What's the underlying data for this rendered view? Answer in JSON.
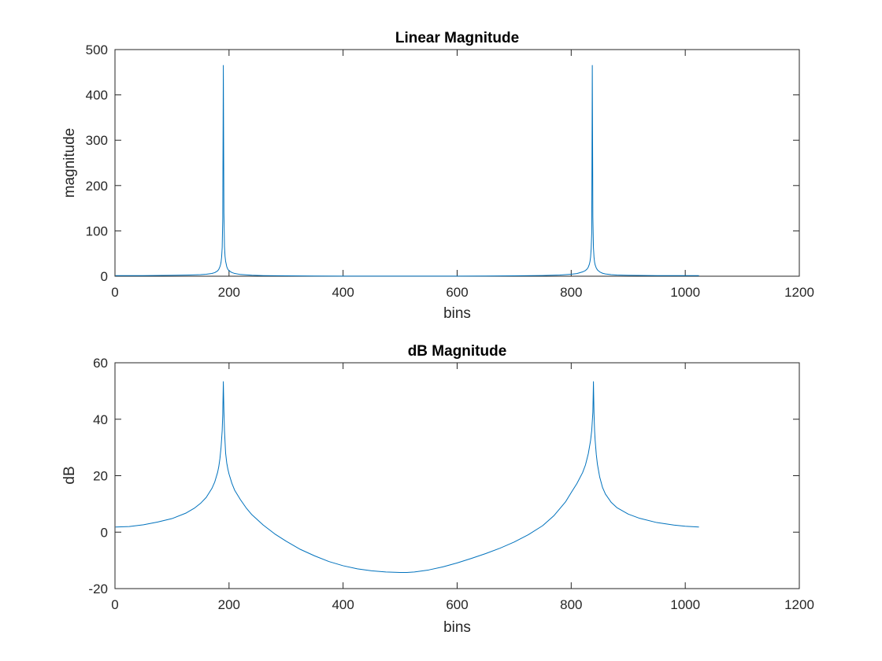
{
  "chart_data": [
    {
      "type": "line",
      "title": "Linear Magnitude",
      "xlabel": "bins",
      "ylabel": "magnitude",
      "xlim": [
        0,
        1200
      ],
      "ylim": [
        0,
        500
      ],
      "xticks": [
        0,
        200,
        400,
        600,
        800,
        1000,
        1200
      ],
      "yticks": [
        0,
        100,
        200,
        300,
        400,
        500
      ],
      "grid": false,
      "color": "#0072BD",
      "series": [
        {
          "x": [
            1,
            50,
            100,
            130,
            150,
            160,
            170,
            175,
            180,
            182,
            184,
            185,
            186,
            187,
            188,
            189,
            190,
            191,
            192,
            193,
            194,
            196,
            198,
            200,
            205,
            210,
            220,
            240,
            260,
            300,
            350,
            400,
            450,
            500,
            512,
            550,
            600,
            650,
            700,
            750,
            780,
            800,
            810,
            820,
            825,
            828,
            830,
            832,
            833,
            834,
            835,
            836,
            837,
            838,
            839,
            840,
            841,
            842,
            844,
            846,
            850,
            855,
            860,
            870,
            880,
            900,
            950,
            1000,
            1024
          ],
          "y": [
            1.2,
            1.3,
            1.9,
            2.6,
            3.5,
            4.3,
            6.1,
            7.9,
            11.8,
            15,
            21,
            25,
            31,
            42,
            63,
            130,
            465,
            140,
            66,
            44,
            33,
            21,
            15,
            12,
            8.1,
            6,
            3.8,
            2.1,
            1.4,
            0.8,
            0.5,
            0.3,
            0.22,
            0.19,
            0.19,
            0.21,
            0.3,
            0.45,
            0.8,
            1.6,
            2.7,
            4.3,
            5.9,
            9.5,
            12.5,
            16,
            20,
            27,
            33,
            42,
            60,
            95,
            465,
            130,
            63,
            42,
            31,
            25,
            18,
            14,
            9.5,
            6.5,
            5,
            3.4,
            2.6,
            1.9,
            1.4,
            1.2,
            1.2
          ]
        }
      ]
    },
    {
      "type": "line",
      "title": "dB Magnitude",
      "xlabel": "bins",
      "ylabel": "dB",
      "xlim": [
        0,
        1200
      ],
      "ylim": [
        -20,
        60
      ],
      "xticks": [
        0,
        200,
        400,
        600,
        800,
        1000,
        1200
      ],
      "yticks": [
        -20,
        0,
        20,
        40,
        60
      ],
      "grid": false,
      "color": "#0072BD",
      "series": [
        {
          "x": [
            1,
            25,
            50,
            75,
            100,
            125,
            140,
            150,
            160,
            170,
            175,
            180,
            182,
            184,
            186,
            188,
            189,
            190,
            191,
            192,
            194,
            196,
            198,
            200,
            205,
            210,
            220,
            230,
            240,
            260,
            280,
            300,
            325,
            350,
            375,
            400,
            425,
            450,
            475,
            500,
            512,
            525,
            550,
            575,
            600,
            625,
            650,
            675,
            700,
            725,
            750,
            770,
            790,
            800,
            810,
            820,
            825,
            830,
            834,
            836,
            838,
            839,
            840,
            841,
            842,
            844,
            846,
            850,
            855,
            860,
            870,
            880,
            900,
            920,
            950,
            980,
            1000,
            1024
          ],
          "y": [
            1.8,
            2.0,
            2.6,
            3.6,
            4.8,
            6.8,
            8.6,
            10.2,
            12.3,
            15.5,
            17.8,
            21.2,
            23.2,
            26,
            30,
            36,
            42,
            53.3,
            43,
            36,
            28,
            24.5,
            22.3,
            20.6,
            17.3,
            14.8,
            11.5,
            8.6,
            6.2,
            2.5,
            -0.6,
            -3.2,
            -6.1,
            -8.4,
            -10.4,
            -11.9,
            -13,
            -13.7,
            -14.1,
            -14.3,
            -14.3,
            -14.1,
            -13.4,
            -12.3,
            -10.9,
            -9.3,
            -7.6,
            -5.7,
            -3.5,
            -0.9,
            2.3,
            5.9,
            10.7,
            14,
            17.2,
            21.1,
            23.8,
            27.8,
            32.5,
            36,
            42.5,
            53.3,
            42,
            36,
            32.5,
            27.5,
            24,
            19.5,
            15.8,
            13.5,
            10.6,
            8.7,
            6.4,
            4.9,
            3.4,
            2.5,
            2.1,
            1.8
          ]
        }
      ]
    }
  ]
}
